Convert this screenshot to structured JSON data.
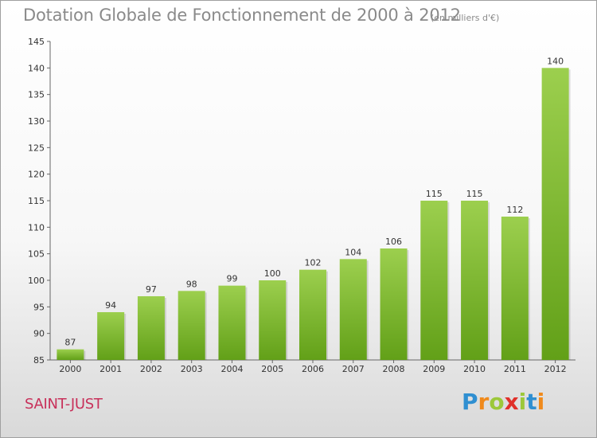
{
  "chart_data": {
    "type": "bar",
    "title": "Dotation Globale de Fonctionnement de 2000 à 2012",
    "subtitle": "(en milliers d'€)",
    "categories": [
      "2000",
      "2001",
      "2002",
      "2003",
      "2004",
      "2005",
      "2006",
      "2007",
      "2008",
      "2009",
      "2010",
      "2011",
      "2012"
    ],
    "values": [
      87,
      94,
      97,
      98,
      99,
      100,
      102,
      104,
      106,
      115,
      115,
      112,
      140
    ],
    "ylim": [
      85,
      145
    ],
    "yticks": [
      85,
      90,
      95,
      100,
      105,
      110,
      115,
      120,
      125,
      130,
      135,
      140,
      145
    ],
    "xlabel": "",
    "ylabel": "",
    "grid": false,
    "bar_color_top": "#9ccf4e",
    "bar_color_bottom": "#62a018"
  },
  "commune": "SAINT-JUST",
  "logo": {
    "letters": [
      "P",
      "r",
      "o",
      "x",
      "i",
      "t",
      "i"
    ],
    "colors": [
      "#2f8fd1",
      "#f08a1c",
      "#9cc83a",
      "#e0302a",
      "#9cc83a",
      "#2f8fd1",
      "#f08a1c"
    ]
  }
}
